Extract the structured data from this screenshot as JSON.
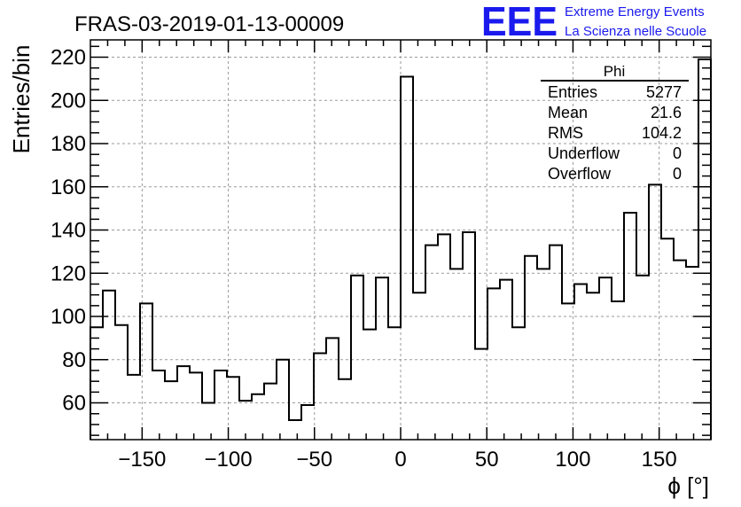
{
  "chart_data": {
    "type": "bar",
    "title": "FRAS-03-2019-01-13-00009",
    "xlabel": "ϕ [°]",
    "ylabel": "Entries/bin",
    "xlim": [
      -180,
      180
    ],
    "ylim": [
      43,
      228
    ],
    "grid": true,
    "bin_width": 7.2,
    "bin_edges_start": -180,
    "values": [
      95,
      112,
      96,
      73,
      106,
      75,
      70,
      77,
      74,
      60,
      75,
      72,
      61,
      64,
      69,
      80,
      52,
      59,
      83,
      90,
      71,
      119,
      94,
      118,
      95,
      211,
      111,
      133,
      138,
      122,
      139,
      85,
      113,
      117,
      95,
      128,
      122,
      133,
      106,
      115,
      111,
      118,
      107,
      148,
      119,
      161,
      136,
      126,
      123,
      219
    ],
    "x_ticks": [
      {
        "value": -150,
        "label": "−150"
      },
      {
        "value": -100,
        "label": "−100"
      },
      {
        "value": -50,
        "label": "−50"
      },
      {
        "value": 0,
        "label": "0"
      },
      {
        "value": 50,
        "label": "50"
      },
      {
        "value": 100,
        "label": "100"
      },
      {
        "value": 150,
        "label": "150"
      }
    ],
    "y_ticks": [
      {
        "value": 60,
        "label": "60"
      },
      {
        "value": 80,
        "label": "80"
      },
      {
        "value": 100,
        "label": "100"
      },
      {
        "value": 120,
        "label": "120"
      },
      {
        "value": 140,
        "label": "140"
      },
      {
        "value": 160,
        "label": "160"
      },
      {
        "value": 180,
        "label": "180"
      },
      {
        "value": 200,
        "label": "200"
      },
      {
        "value": 220,
        "label": "220"
      }
    ]
  },
  "stats_box": {
    "title": "Phi",
    "rows": [
      {
        "label": "Entries",
        "value": "5277"
      },
      {
        "label": "Mean",
        "value": "21.6"
      },
      {
        "label": "RMS",
        "value": "104.2"
      },
      {
        "label": "Underflow",
        "value": "0"
      },
      {
        "label": "Overflow",
        "value": "0"
      }
    ]
  },
  "logo": {
    "text": "EEE",
    "line1": "Extreme Energy Events",
    "line2": "La Scienza nelle Scuole",
    "color": "#1a1aee"
  },
  "colors": {
    "histogram_line": "#000000",
    "grid": "#9a9a9a",
    "axis": "#000000"
  }
}
